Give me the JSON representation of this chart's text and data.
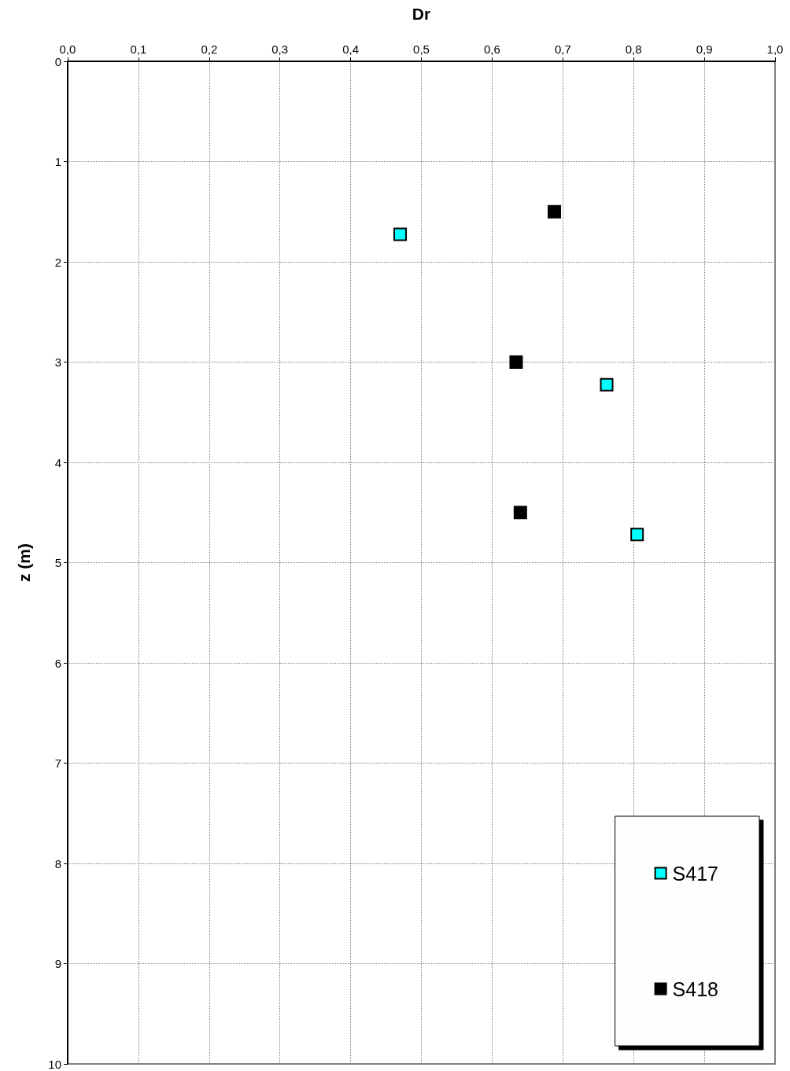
{
  "chart_data": {
    "type": "scatter",
    "xlabel": "Dr",
    "ylabel": "z (m)",
    "series": [
      {
        "name": "S417",
        "color": "#00ffff",
        "x": [
          0.47,
          0.762,
          0.805
        ],
        "values": [
          1.725,
          3.225,
          4.72
        ]
      },
      {
        "name": "S418",
        "color": "#000000",
        "x": [
          0.688,
          0.634,
          0.64
        ],
        "values": [
          1.5,
          3.0,
          4.5
        ]
      }
    ],
    "xlim": [
      0,
      1
    ],
    "xticks": [
      {
        "value": 0,
        "label": "0,0"
      },
      {
        "value": 0.1,
        "label": "0,1"
      },
      {
        "value": 0.2,
        "label": "0,2"
      },
      {
        "value": 0.3,
        "label": "0,3"
      },
      {
        "value": 0.4,
        "label": "0,4"
      },
      {
        "value": 0.5,
        "label": "0,5"
      },
      {
        "value": 0.6,
        "label": "0,6"
      },
      {
        "value": 0.7,
        "label": "0,7"
      },
      {
        "value": 0.8,
        "label": "0,8"
      },
      {
        "value": 0.9,
        "label": "0,9"
      },
      {
        "value": 1,
        "label": "1,0"
      }
    ],
    "ylim": [
      10,
      0
    ],
    "yticks": [
      0,
      1,
      2,
      3,
      4,
      5,
      6,
      7,
      8,
      9,
      10
    ],
    "grid": true,
    "legend": "bottom right",
    "marker": "square"
  }
}
